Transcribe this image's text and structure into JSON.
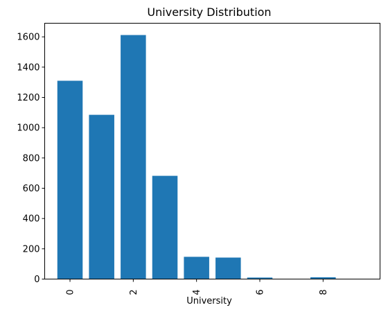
{
  "chart_data": {
    "type": "bar",
    "title": "University Distribution",
    "xlabel": "University",
    "ylabel": "",
    "x": [
      0,
      1,
      2,
      3,
      4,
      5,
      6,
      7,
      8
    ],
    "values": [
      1310,
      1085,
      1612,
      682,
      147,
      142,
      10,
      0,
      12
    ],
    "xlim": [
      -0.8,
      9.8
    ],
    "ylim": [
      0,
      1690
    ],
    "xticks": [
      0,
      2,
      4,
      6,
      8
    ],
    "yticks": [
      0,
      200,
      400,
      600,
      800,
      1000,
      1200,
      1400,
      1600
    ],
    "bar_color": "#1f77b4",
    "grid": false,
    "legend": "none"
  }
}
